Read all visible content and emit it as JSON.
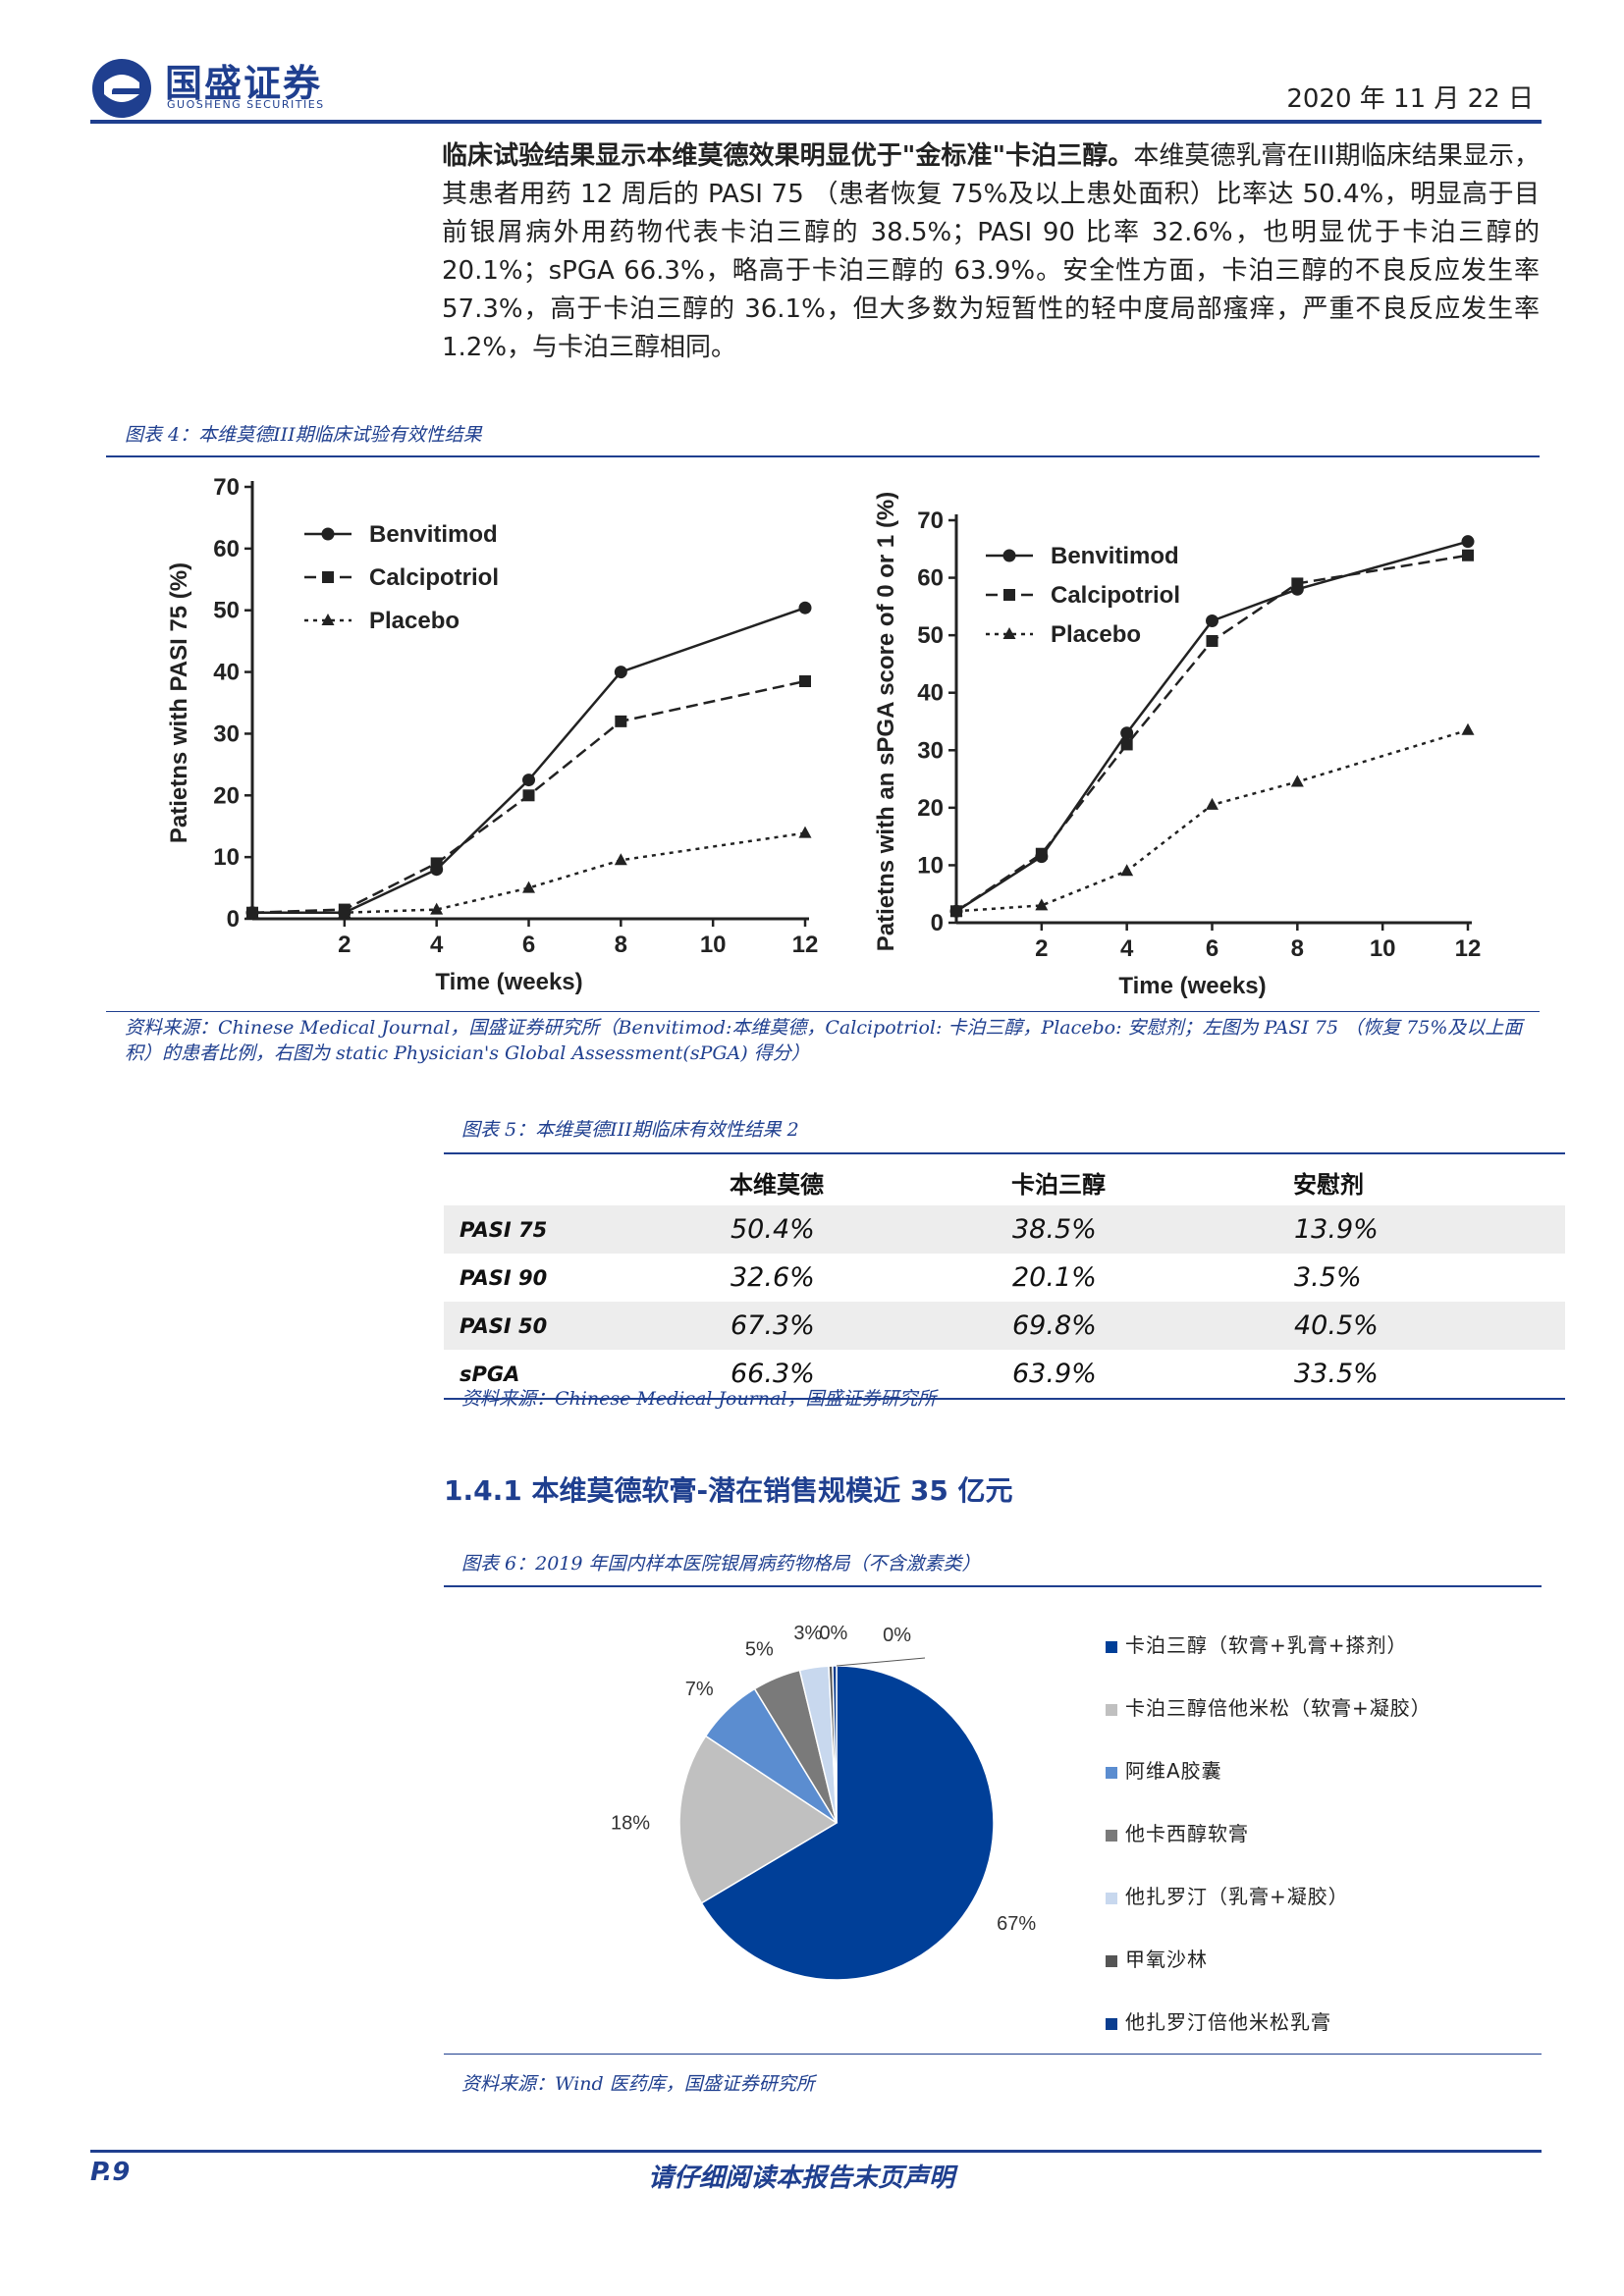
{
  "header": {
    "logo_cn": "国盛证券",
    "logo_en": "GUOSHENG SECURITIES",
    "date": "2020 年 11 月 22 日"
  },
  "paragraph": {
    "bold_lead": "临床试验结果显示本维莫德效果明显优于\"金标准\"卡泊三醇。",
    "text": "本维莫德乳膏在III期临床结果显示，其患者用药 12 周后的 PASI 75 （患者恢复 75%及以上患处面积）比率达 50.4%，明显高于目前银屑病外用药物代表卡泊三醇的 38.5%；PASI 90 比率 32.6%，也明显优于卡泊三醇的 20.1%；sPGA 66.3%，略高于卡泊三醇的 63.9%。安全性方面，卡泊三醇的不良反应发生率 57.3%，高于卡泊三醇的 36.1%，但大多数为短暂性的轻中度局部瘙痒，严重不良反应发生率 1.2%，与卡泊三醇相同。"
  },
  "figure4": {
    "caption": "图表 4：本维莫德III期临床试验有效性结果",
    "source": "资料来源：Chinese Medical Journal，国盛证券研究所（Benvitimod:本维莫德，Calcipotriol: 卡泊三醇，Placebo: 安慰剂；左图为 PASI 75 （恢复 75%及以上面积）的患者比例，右图为 static Physician's Global Assessment(sPGA) 得分）"
  },
  "figure5": {
    "caption": "图表 5：本维莫德III期临床有效性结果 2",
    "source": "资料来源：Chinese Medical Journal，国盛证券研究所",
    "headers": [
      "",
      "本维莫德",
      "卡泊三醇",
      "安慰剂"
    ],
    "rows": [
      {
        "label": "PASI 75",
        "values": [
          "50.4%",
          "38.5%",
          "13.9%"
        ]
      },
      {
        "label": "PASI 90",
        "values": [
          "32.6%",
          "20.1%",
          "3.5%"
        ]
      },
      {
        "label": "PASI 50",
        "values": [
          "67.3%",
          "69.8%",
          "40.5%"
        ]
      },
      {
        "label": "sPGA",
        "values": [
          "66.3%",
          "63.9%",
          "33.5%"
        ]
      }
    ]
  },
  "section": {
    "title": "1.4.1 本维莫德软膏-潜在销售规模近 35 亿元"
  },
  "figure6": {
    "caption": "图表 6：2019 年国内样本医院银屑病药物格局（不含激素类）",
    "source": "资料来源：Wind 医药库，国盛证券研究所"
  },
  "chart_data": [
    {
      "type": "line",
      "xlabel": "Time (weeks)",
      "ylabel": "Patietns with PASI 75 (%)",
      "x": [
        0,
        2,
        4,
        6,
        8,
        12
      ],
      "xticks": [
        2,
        4,
        6,
        8,
        10,
        12
      ],
      "xlim": [
        0,
        12
      ],
      "ylim": [
        0,
        70
      ],
      "yticks": [
        0,
        10,
        20,
        30,
        40,
        50,
        60,
        70
      ],
      "legend_position": "top-left",
      "series": [
        {
          "name": "Benvitimod",
          "marker": "circle",
          "dash": "solid",
          "values": [
            1,
            1,
            8,
            22.5,
            40,
            50.4
          ]
        },
        {
          "name": "Calcipotriol",
          "marker": "square",
          "dash": "dashed",
          "values": [
            1,
            1.5,
            9,
            20,
            32,
            38.5
          ]
        },
        {
          "name": "Placebo",
          "marker": "triangle",
          "dash": "dotted",
          "values": [
            1,
            1,
            1.5,
            5,
            9.5,
            13.9
          ]
        }
      ]
    },
    {
      "type": "line",
      "xlabel": "Time (weeks)",
      "ylabel": "Patietns with an sPGA score of 0 or 1 (%)",
      "x": [
        0,
        2,
        4,
        6,
        8,
        12
      ],
      "xticks": [
        2,
        4,
        6,
        8,
        10,
        12
      ],
      "xlim": [
        0,
        12
      ],
      "ylim": [
        0,
        70
      ],
      "yticks": [
        0,
        10,
        20,
        30,
        40,
        50,
        60,
        70
      ],
      "legend_position": "top-left",
      "series": [
        {
          "name": "Benvitimod",
          "marker": "circle",
          "dash": "solid",
          "values": [
            2,
            11.5,
            33,
            52.5,
            58,
            66.3
          ]
        },
        {
          "name": "Calcipotriol",
          "marker": "square",
          "dash": "dashed",
          "values": [
            2,
            12,
            31,
            49,
            59,
            63.9
          ]
        },
        {
          "name": "Placebo",
          "marker": "triangle",
          "dash": "dotted",
          "values": [
            2,
            3,
            9,
            20.5,
            24.5,
            33.5
          ]
        }
      ]
    },
    {
      "type": "pie",
      "legend_position": "right",
      "slices": [
        {
          "name": "卡泊三醇（软膏+乳膏+搽剂）",
          "value": 67,
          "label": "67%",
          "color": "#003f98"
        },
        {
          "name": "卡泊三醇倍他米松（软膏+凝胶）",
          "value": 18,
          "label": "18%",
          "color": "#c0c0c0"
        },
        {
          "name": "阿维A胶囊",
          "value": 7,
          "label": "7%",
          "color": "#5b8dd0"
        },
        {
          "name": "他卡西醇软膏",
          "value": 5,
          "label": "5%",
          "color": "#7a7a7a"
        },
        {
          "name": "他扎罗汀（乳膏+凝胶）",
          "value": 3,
          "label": "3%",
          "color": "#c8d8ee"
        },
        {
          "name": "甲氧沙林",
          "value": 0.4,
          "label": "0%",
          "color": "#555555"
        },
        {
          "name": "他扎罗汀倍他米松乳膏",
          "value": 0.4,
          "label": "0%",
          "color": "#0a3d8f"
        }
      ]
    }
  ],
  "footer": {
    "page": "P.9",
    "note": "请仔细阅读本报告末页声明"
  }
}
